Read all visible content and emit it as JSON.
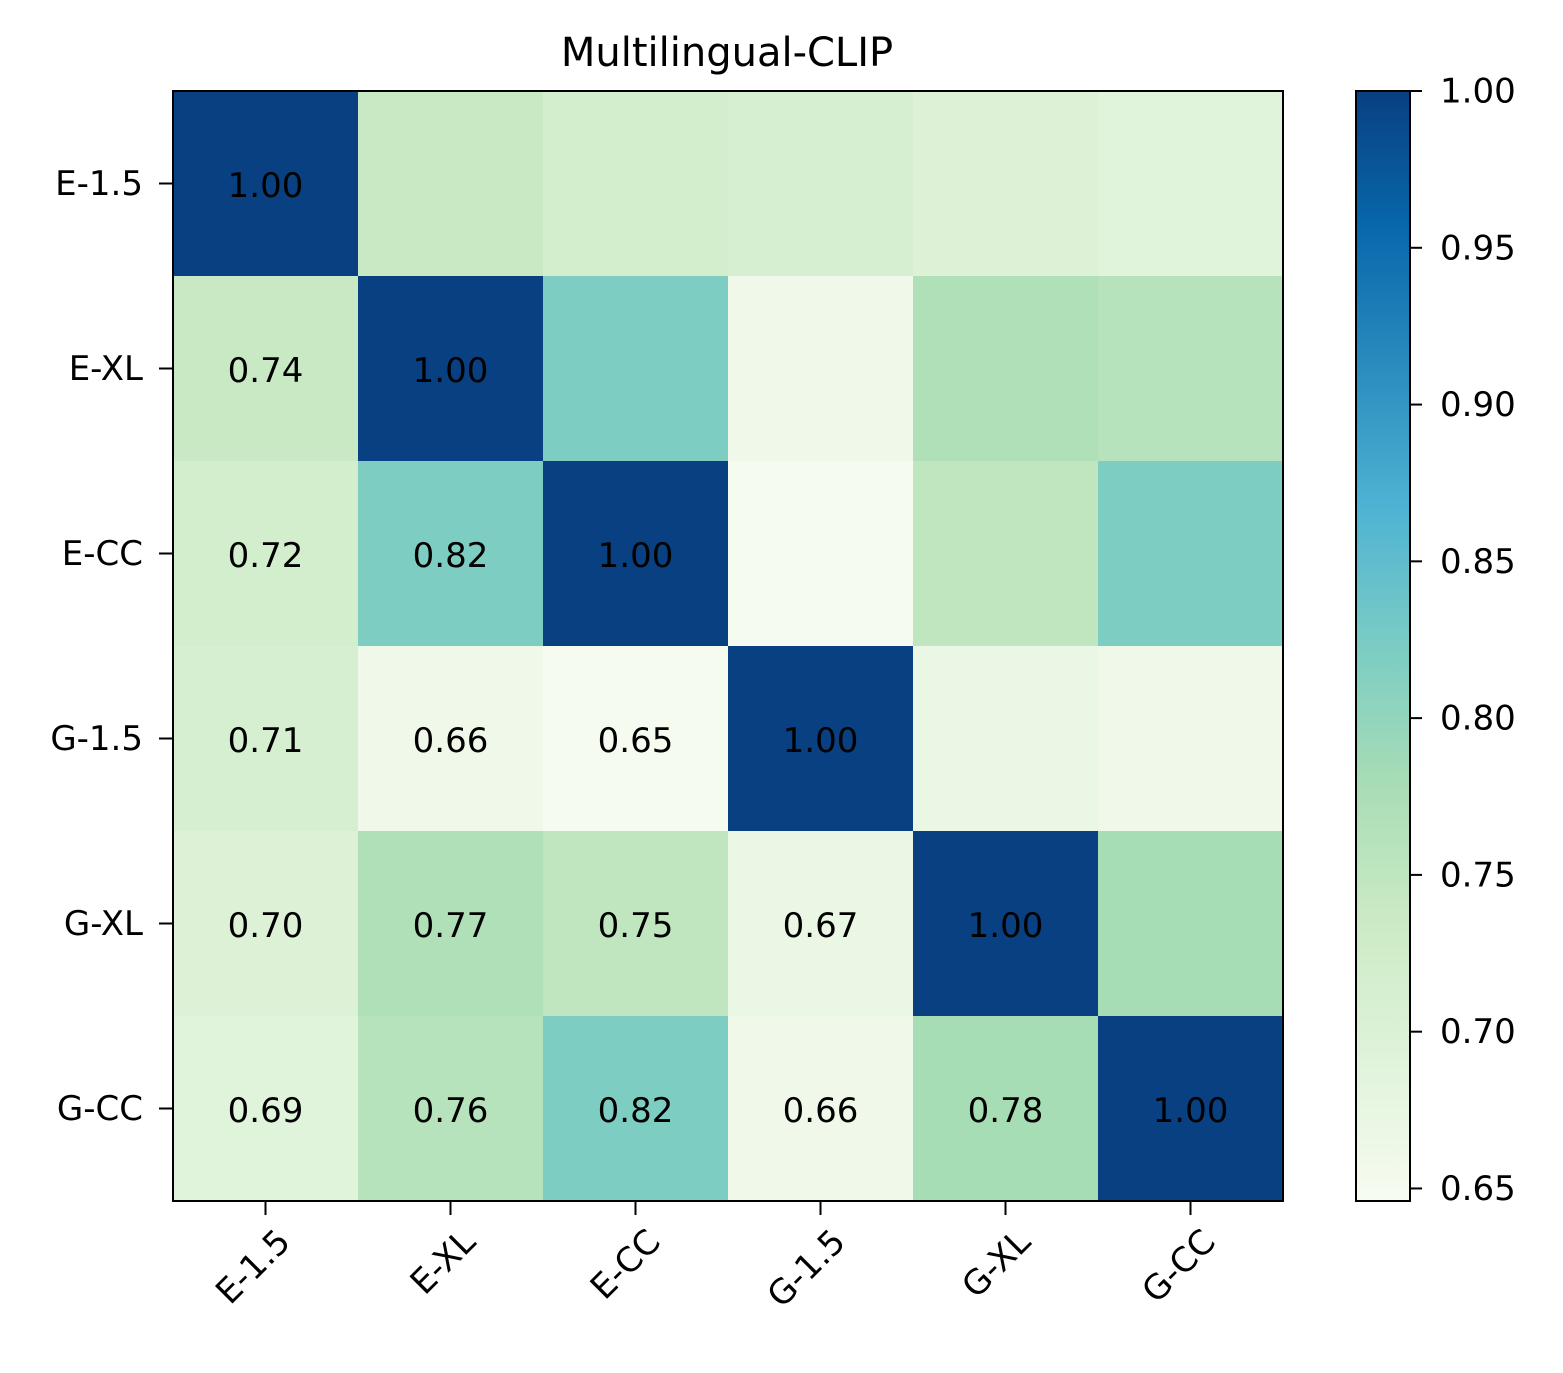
{
  "chart_data": {
    "type": "heatmap",
    "title": "Multilingual-CLIP",
    "xlabel": "",
    "ylabel": "",
    "row_labels": [
      "E-1.5",
      "E-XL",
      "E-CC",
      "G-1.5",
      "G-XL",
      "G-CC"
    ],
    "col_labels": [
      "E-1.5",
      "E-XL",
      "E-CC",
      "G-1.5",
      "G-XL",
      "G-CC"
    ],
    "values": [
      [
        1.0,
        0.74,
        0.72,
        0.71,
        0.7,
        0.69
      ],
      [
        0.74,
        1.0,
        0.82,
        0.66,
        0.77,
        0.76
      ],
      [
        0.72,
        0.82,
        1.0,
        0.65,
        0.75,
        0.82
      ],
      [
        0.71,
        0.66,
        0.65,
        1.0,
        0.67,
        0.66
      ],
      [
        0.7,
        0.77,
        0.75,
        0.67,
        1.0,
        0.78
      ],
      [
        0.69,
        0.76,
        0.82,
        0.66,
        0.78,
        1.0
      ]
    ],
    "annotations_shown": "lower-triangle-and-diagonal",
    "value_range": [
      0.646,
      1.0
    ],
    "colormap": "GnBu",
    "colorbar": {
      "ticks": [
        "0.65",
        "0.70",
        "0.75",
        "0.80",
        "0.85",
        "0.90",
        "0.95",
        "1.00"
      ],
      "position": "right"
    },
    "x_tick_rotation_deg": 45
  }
}
